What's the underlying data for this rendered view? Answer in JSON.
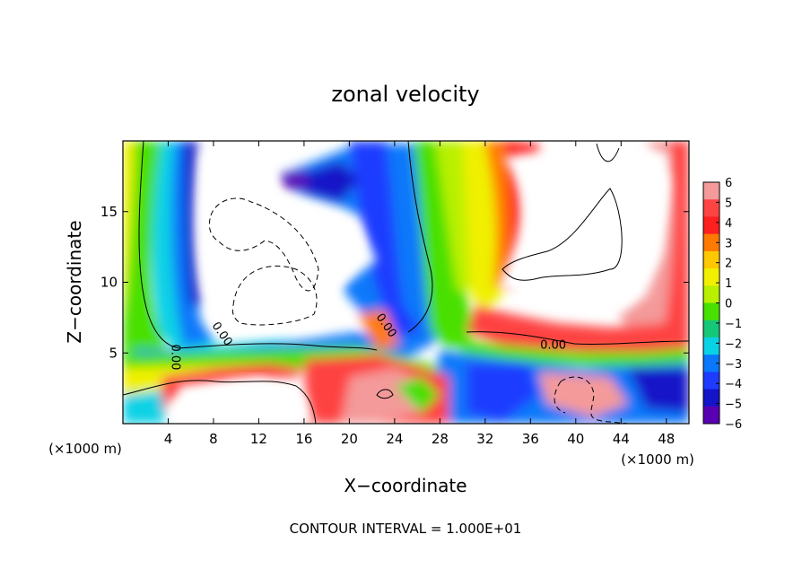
{
  "chart_data": {
    "type": "heatmap",
    "title": "zonal velocity",
    "xlabel": "X−coordinate",
    "ylabel": "Z−coordinate",
    "x_unit_left": "(×1000 m)",
    "x_unit_right": "(×1000 m)",
    "xlim": [
      0,
      50
    ],
    "ylim": [
      0,
      20
    ],
    "xticks": [
      4,
      8,
      12,
      16,
      20,
      24,
      28,
      32,
      36,
      40,
      44,
      48
    ],
    "yticks": [
      5,
      10,
      15
    ],
    "colorbar": {
      "ticks": [
        6,
        5,
        4,
        3,
        2,
        1,
        0,
        -1,
        -2,
        -3,
        -4,
        -5,
        -6
      ],
      "tick_labels": [
        "6",
        "5",
        "4",
        "3",
        "2",
        "1",
        "0",
        "−1",
        "−2",
        "−3",
        "−4",
        "−5",
        "−6"
      ],
      "colors": [
        "#f49a9a",
        "#fe4343",
        "#fe1f1f",
        "#ff7a00",
        "#ffc800",
        "#f0f000",
        "#b9f000",
        "#48e000",
        "#14c878",
        "#0ad2e6",
        "#0a78fa",
        "#1e3cff",
        "#1414c8",
        "#5a00b4"
      ]
    },
    "contour_labels": [
      {
        "text": "0.00",
        "x": 8.5,
        "y": 6.2,
        "angle": 55
      },
      {
        "text": "0.00",
        "x": 23.0,
        "y": 6.8,
        "angle": 55
      },
      {
        "text": "0.00",
        "x": 38.0,
        "y": 5.3,
        "angle": 0
      },
      {
        "text": "0.00",
        "x": 4.3,
        "y": 4.7,
        "angle": 90
      }
    ],
    "footer": "CONTOUR INTERVAL = 1.000E+01"
  }
}
